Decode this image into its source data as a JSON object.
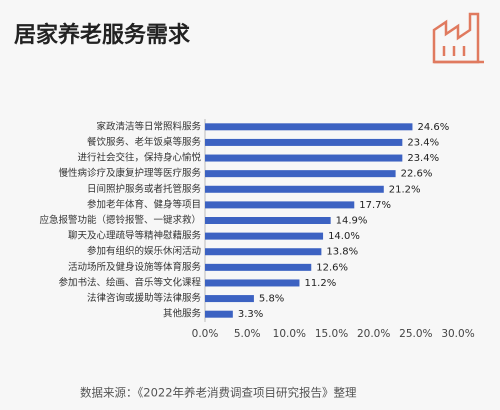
{
  "chart_data": {
    "type": "bar",
    "orientation": "horizontal",
    "title": "居家养老服务需求",
    "source": "数据来源：《2022年养老消费调查项目研究报告》整理",
    "categories": [
      "家政清洁等日常照料服务",
      "餐饮服务、老年饭桌等服务",
      "进行社会交往，保持身心愉悦",
      "慢性病诊疗及康复护理等医疗服务",
      "日间照护服务或者托管服务",
      "参加老年体育、健身等项目",
      "应急报警功能（摁铃报警、一键求救）",
      "聊天及心理疏导等精神慰藉服务",
      "参加有组织的娱乐休闲活动",
      "活动场所及健身设施等体育服务",
      "参加书法、绘画、音乐等文化课程",
      "法律咨询或援助等法律服务",
      "其他服务"
    ],
    "values": [
      24.6,
      23.4,
      23.4,
      22.6,
      21.2,
      17.7,
      14.9,
      14.0,
      13.8,
      12.6,
      11.2,
      5.8,
      3.3
    ],
    "value_labels": [
      "24.6%",
      "23.4%",
      "23.4%",
      "22.6%",
      "21.2%",
      "17.7%",
      "14.9%",
      "14.0%",
      "13.8%",
      "12.6%",
      "11.2%",
      "5.8%",
      "3.3%"
    ],
    "color": "#3c62c2",
    "xlim": [
      0,
      30
    ],
    "xticks": [
      {
        "value": 0,
        "label": "0.0%"
      },
      {
        "value": 5,
        "label": "5.0%"
      },
      {
        "value": 10,
        "label": "10.0%"
      },
      {
        "value": 15,
        "label": "15.0%"
      },
      {
        "value": 20,
        "label": "20.0%"
      },
      {
        "value": 25,
        "label": "25.0%"
      },
      {
        "value": 30,
        "label": "30.0%"
      }
    ]
  }
}
